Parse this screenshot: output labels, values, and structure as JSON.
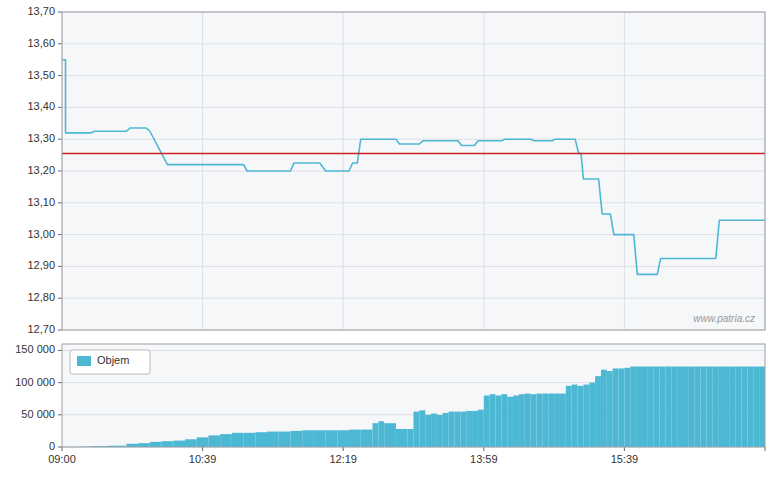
{
  "chart_data": [
    {
      "type": "line",
      "x": [
        0,
        3,
        3,
        25,
        28,
        55,
        58,
        72,
        75,
        90,
        155,
        158,
        195,
        198,
        220,
        225,
        245,
        248,
        252,
        255,
        285,
        288,
        305,
        308,
        338,
        341,
        352,
        355,
        375,
        378,
        400,
        403,
        418,
        421,
        438,
        441,
        443,
        445,
        458,
        461,
        468,
        471,
        488,
        491,
        508,
        511,
        528,
        558,
        561,
        578,
        600
      ],
      "series": [
        {
          "color": "#4db8d4",
          "values": [
            13.55,
            13.55,
            13.32,
            13.32,
            13.325,
            13.325,
            13.335,
            13.335,
            13.325,
            13.22,
            13.22,
            13.2,
            13.2,
            13.225,
            13.225,
            13.2,
            13.2,
            13.225,
            13.225,
            13.3,
            13.3,
            13.285,
            13.285,
            13.295,
            13.295,
            13.28,
            13.28,
            13.295,
            13.295,
            13.3,
            13.3,
            13.295,
            13.295,
            13.3,
            13.3,
            13.255,
            13.255,
            13.175,
            13.175,
            13.065,
            13.065,
            13.0,
            13.0,
            12.875,
            12.875,
            12.925,
            12.925,
            12.925,
            13.045,
            13.045,
            13.045
          ]
        }
      ],
      "reference_line": {
        "value": 13.255,
        "color": "#cc2222"
      },
      "annotation": "www.patria.cz",
      "xlim": [
        0,
        600
      ],
      "xticks": [
        0,
        120,
        240,
        360,
        480,
        600
      ],
      "ylim": [
        12.7,
        13.7
      ],
      "yticks": [
        {
          "value": 12.7,
          "label": "12,70"
        },
        {
          "value": 12.8,
          "label": "12,80"
        },
        {
          "value": 12.9,
          "label": "12,90"
        },
        {
          "value": 13.0,
          "label": "13,00"
        },
        {
          "value": 13.1,
          "label": "13,10"
        },
        {
          "value": 13.2,
          "label": "13,20"
        },
        {
          "value": 13.3,
          "label": "13,30"
        },
        {
          "value": 13.4,
          "label": "13,40"
        },
        {
          "value": 13.5,
          "label": "13,50"
        },
        {
          "value": 13.6,
          "label": "13,60"
        },
        {
          "value": 13.7,
          "label": "13,70"
        }
      ],
      "tick_labels": "y",
      "grid": true
    },
    {
      "type": "bar",
      "bins": [
        0,
        15,
        25,
        40,
        55,
        65,
        75,
        85,
        95,
        105,
        115,
        125,
        135,
        145,
        155,
        165,
        175,
        185,
        195,
        205,
        215,
        225,
        235,
        245,
        255,
        265,
        270,
        275,
        285,
        295,
        300,
        305,
        310,
        315,
        320,
        325,
        330,
        335,
        340,
        345,
        350,
        355,
        360,
        365,
        370,
        375,
        380,
        385,
        390,
        395,
        400,
        405,
        410,
        415,
        420,
        425,
        430,
        435,
        440,
        445,
        450,
        455,
        460,
        465,
        470,
        475,
        480,
        485,
        490,
        495,
        500,
        505,
        510,
        515,
        520,
        525,
        530,
        535,
        540,
        545,
        550,
        555,
        560,
        565,
        570,
        575,
        580,
        585,
        590,
        595,
        600
      ],
      "series": [
        {
          "name": "Objem",
          "color": "#4db8d4",
          "values": [
            0,
            500,
            1500,
            2000,
            5000,
            6000,
            8000,
            9000,
            10000,
            12000,
            15000,
            18000,
            20000,
            22000,
            22000,
            23000,
            24000,
            24000,
            25000,
            26000,
            26000,
            26000,
            26000,
            27000,
            27000,
            37000,
            40000,
            37000,
            28000,
            28000,
            55000,
            57000,
            50000,
            52000,
            50000,
            53000,
            55000,
            55000,
            55000,
            56000,
            56000,
            58000,
            80000,
            82000,
            80000,
            82000,
            78000,
            80000,
            82000,
            83000,
            82000,
            83000,
            83000,
            83000,
            83000,
            83000,
            95000,
            97000,
            95000,
            97000,
            100000,
            110000,
            120000,
            118000,
            122000,
            122000,
            123000,
            125000,
            125000,
            125000,
            125000,
            125000,
            125000,
            125000,
            125000,
            125000,
            125000,
            125000,
            125000,
            125000,
            125000,
            125000,
            125000,
            125000,
            125000,
            125000,
            125000,
            125000,
            125000,
            125000
          ]
        }
      ],
      "xlim": [
        0,
        600
      ],
      "xticks": [
        {
          "value": 0,
          "label": "09:00"
        },
        {
          "value": 120,
          "label": "10:39"
        },
        {
          "value": 240,
          "label": "12:19"
        },
        {
          "value": 360,
          "label": "13:59"
        },
        {
          "value": 480,
          "label": "15:39"
        },
        {
          "value": 600,
          "label": null
        }
      ],
      "ylim": [
        0,
        160000
      ],
      "yticks": [
        0,
        {
          "value": 50000,
          "label": "50 000"
        },
        {
          "value": 100000,
          "label": "100 000"
        },
        {
          "value": 150000,
          "label": "150 000"
        }
      ],
      "legend": "upper left",
      "grid": "y"
    }
  ]
}
